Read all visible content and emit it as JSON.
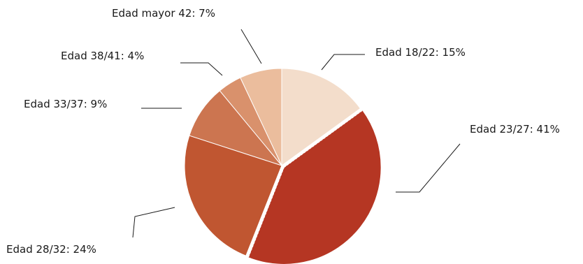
{
  "chart_data": {
    "type": "pie",
    "title": "",
    "categories": [
      "Edad 18/22",
      "Edad 23/27",
      "Edad 28/32",
      "Edad 33/37",
      "Edad 38/41",
      "Edad mayor 42"
    ],
    "values": [
      15,
      41,
      24,
      9,
      4,
      7
    ],
    "unit": "%",
    "labels": [
      "Edad 18/22: 15%",
      "Edad 23/27: 41%",
      "Edad 28/32: 24%",
      "Edad 33/37: 9%",
      "Edad 38/41: 4%",
      "Edad mayor 42: 7%"
    ],
    "colors": [
      "#f3ddcb",
      "#b53623",
      "#c05631",
      "#cc7550",
      "#d9916c",
      "#ebbd9d"
    ],
    "exploded_slice": "Edad 23/27",
    "legend": "none"
  }
}
